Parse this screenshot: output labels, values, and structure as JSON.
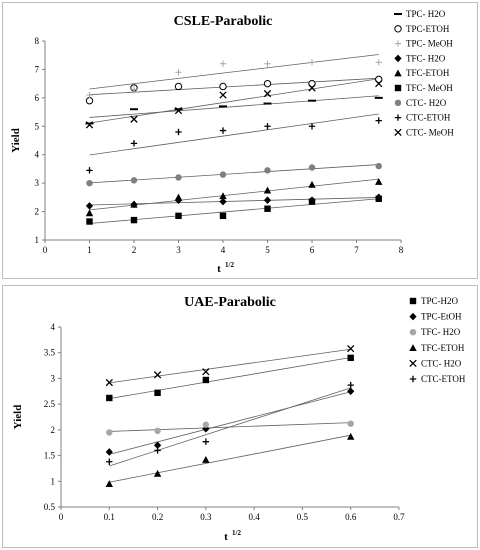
{
  "chart_data": [
    {
      "type": "scatter",
      "title": "CSLE-Parabolic",
      "xlabel": "t",
      "xlabel_sup": "1/2",
      "ylabel": "Yield",
      "xlim": [
        0,
        8
      ],
      "ylim": [
        1,
        8
      ],
      "xticks": [
        0,
        1,
        2,
        3,
        4,
        5,
        6,
        7,
        8
      ],
      "yticks": [
        1,
        2,
        3,
        4,
        5,
        6,
        7,
        8
      ],
      "trendlines": true,
      "legend_position": "right",
      "x": [
        1,
        2,
        3,
        4,
        5,
        6,
        7.5
      ],
      "series": [
        {
          "name": "TPC- H2O",
          "marker": "dash",
          "color": "#000000",
          "values": [
            5.1,
            5.6,
            5.6,
            5.7,
            5.8,
            5.9,
            6.0
          ]
        },
        {
          "name": "TPC-ETOH",
          "marker": "circle-open",
          "color": "#000000",
          "values": [
            5.9,
            6.35,
            6.4,
            6.4,
            6.5,
            6.5,
            6.65
          ]
        },
        {
          "name": "TPC- MeOH",
          "marker": "plus-light",
          "color": "#a6a6a6",
          "values": [
            6.1,
            6.3,
            6.9,
            7.2,
            7.2,
            7.25,
            7.25
          ]
        },
        {
          "name": "TFC- H2O",
          "marker": "diamond",
          "color": "#000000",
          "values": [
            2.2,
            2.25,
            2.4,
            2.35,
            2.4,
            2.4,
            2.5
          ]
        },
        {
          "name": "TFC-ETOH",
          "marker": "triangle",
          "color": "#000000",
          "values": [
            1.95,
            2.25,
            2.5,
            2.55,
            2.75,
            2.95,
            3.05
          ]
        },
        {
          "name": "TFC- MeOH",
          "marker": "square",
          "color": "#000000",
          "values": [
            1.65,
            1.7,
            1.85,
            1.85,
            2.1,
            2.35,
            2.45
          ]
        },
        {
          "name": "CTC- H2O",
          "marker": "circle",
          "color": "#7f7f7f",
          "values": [
            3.0,
            3.1,
            3.2,
            3.3,
            3.45,
            3.55,
            3.6
          ]
        },
        {
          "name": "CTC-ETOH",
          "marker": "plus",
          "color": "#000000",
          "values": [
            3.45,
            4.4,
            4.8,
            4.85,
            5.0,
            5.0,
            5.2
          ]
        },
        {
          "name": "CTC- MeOH",
          "marker": "x",
          "color": "#000000",
          "values": [
            5.05,
            5.25,
            5.55,
            6.1,
            6.15,
            6.35,
            6.5
          ]
        }
      ]
    },
    {
      "type": "scatter",
      "title": "UAE-Parabolic",
      "xlabel": "t",
      "xlabel_sup": "1/2",
      "ylabel": "Yield",
      "xlim": [
        0,
        0.7
      ],
      "ylim": [
        0.5,
        4
      ],
      "xticks": [
        0,
        0.1,
        0.2,
        0.3,
        0.4,
        0.5,
        0.6,
        0.7
      ],
      "yticks": [
        0.5,
        1,
        1.5,
        2,
        2.5,
        3,
        3.5,
        4
      ],
      "trendlines": true,
      "legend_position": "right",
      "x": [
        0.1,
        0.2,
        0.3,
        0.6
      ],
      "series": [
        {
          "name": "TPC-H2O",
          "marker": "square",
          "color": "#000000",
          "values": [
            2.62,
            2.72,
            2.97,
            3.4
          ]
        },
        {
          "name": "TPC-EtOH",
          "marker": "diamond",
          "color": "#000000",
          "values": [
            1.57,
            1.7,
            2.02,
            2.75
          ]
        },
        {
          "name": "TFC- H2O",
          "marker": "circle",
          "color": "#a6a6a6",
          "values": [
            1.95,
            1.98,
            2.1,
            2.12
          ]
        },
        {
          "name": "TFC-ETOH",
          "marker": "triangle",
          "color": "#000000",
          "values": [
            0.95,
            1.15,
            1.42,
            1.87
          ]
        },
        {
          "name": "CTC- H2O",
          "marker": "x",
          "color": "#000000",
          "values": [
            2.92,
            3.07,
            3.13,
            3.58
          ]
        },
        {
          "name": "CTC-ETOH",
          "marker": "plus",
          "color": "#000000",
          "values": [
            1.38,
            1.6,
            1.77,
            2.87
          ]
        }
      ]
    }
  ]
}
